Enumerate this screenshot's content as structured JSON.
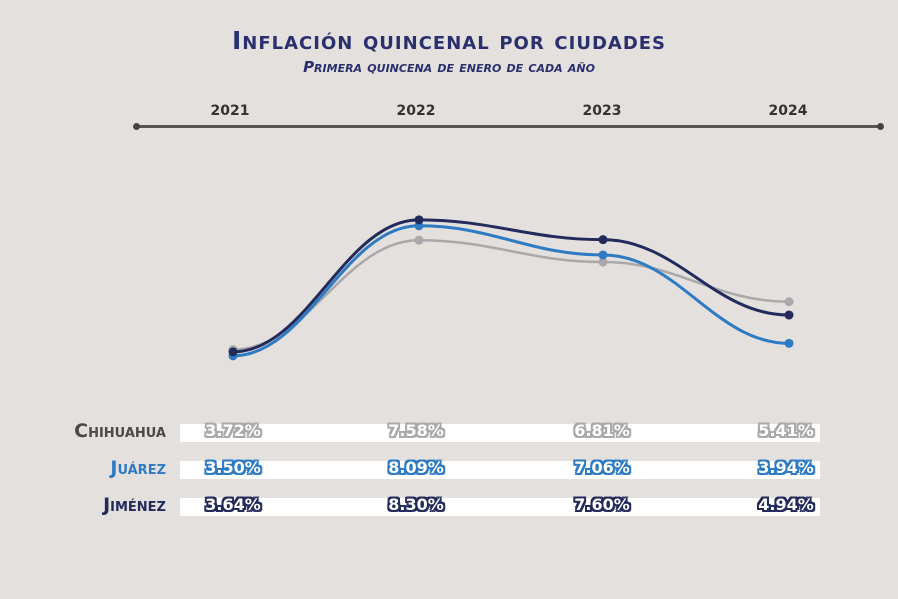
{
  "chart_data": {
    "type": "line",
    "title": "Inflación quincenal por ciudades",
    "subtitle": "Primera quincena de enero de cada año",
    "categories": [
      "2021",
      "2022",
      "2023",
      "2024"
    ],
    "ylim": [
      3,
      9
    ],
    "series": [
      {
        "name": "Chihuahua",
        "values": [
          3.72,
          7.58,
          6.81,
          5.41
        ],
        "color": "#a9a9ab",
        "labels": [
          "3.72%",
          "7.58%",
          "6.81%",
          "5.41%"
        ]
      },
      {
        "name": "Juárez",
        "values": [
          3.5,
          8.09,
          7.06,
          3.94
        ],
        "color": "#2e7bc4",
        "labels": [
          "3.50%",
          "8.09%",
          "7.06%",
          "3.94%"
        ]
      },
      {
        "name": "Jiménez",
        "values": [
          3.64,
          8.3,
          7.6,
          4.94
        ],
        "color": "#232a5c",
        "labels": [
          "3.64%",
          "8.30%",
          "7.60%",
          "4.94%"
        ]
      }
    ]
  },
  "colors": {
    "background": "#e4e0dd",
    "title": "#2a2f6e",
    "axis": "#555555"
  }
}
